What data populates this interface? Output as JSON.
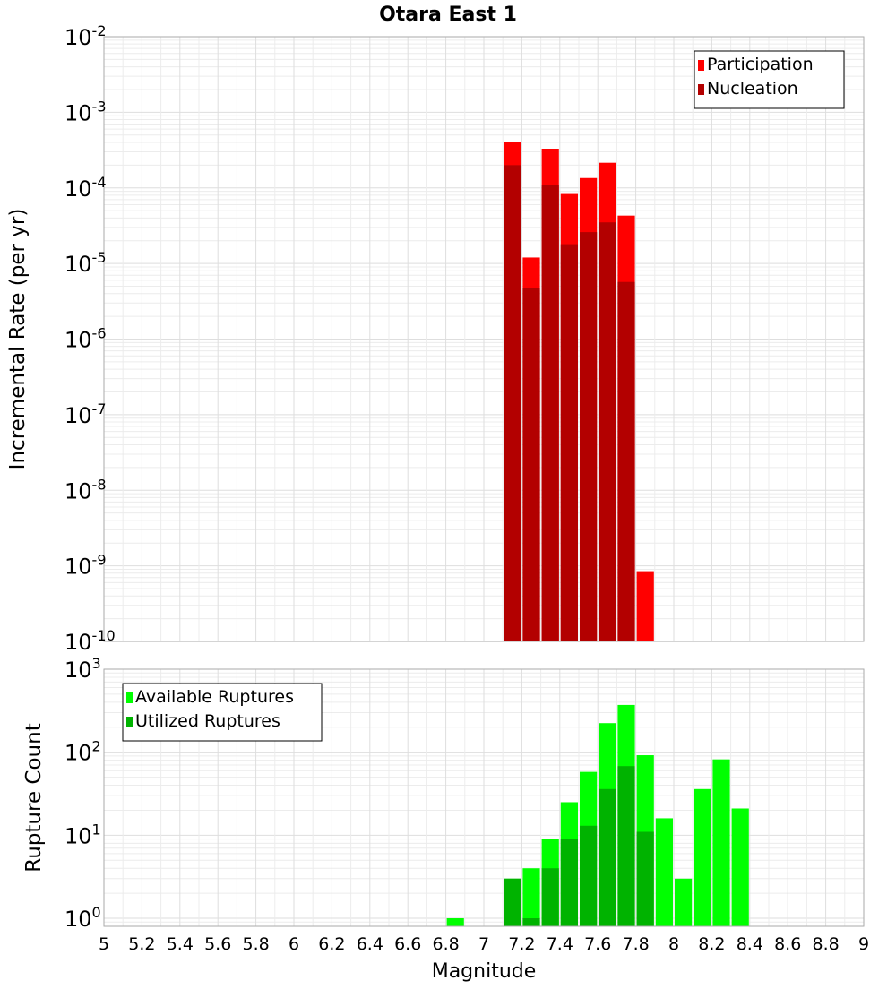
{
  "chart_data": {
    "title": "Otara East 1",
    "xlabel": "Magnitude",
    "xlim": [
      5,
      9
    ],
    "xticks": [
      "5",
      "5.2",
      "5.4",
      "5.6",
      "5.8",
      "6",
      "6.2",
      "6.4",
      "6.6",
      "6.8",
      "7",
      "7.2",
      "7.4",
      "7.6",
      "7.8",
      "8",
      "8.2",
      "8.4",
      "8.6",
      "8.8",
      "9"
    ],
    "bin_width": 0.1,
    "panels": [
      {
        "type": "bar",
        "y_scale": "log",
        "ylabel": "Incremental Rate (per yr)",
        "ylim": [
          1e-10,
          0.01
        ],
        "ytick_exponents": [
          -10,
          -9,
          -8,
          -7,
          -6,
          -5,
          -4,
          -3,
          -2
        ],
        "grid": true,
        "legend_position": "top-right",
        "series": [
          {
            "name": "Participation",
            "color": "#ff0000",
            "x": [
              7.15,
              7.25,
              7.35,
              7.45,
              7.55,
              7.65,
              7.75,
              7.85
            ],
            "values": [
              0.00041,
              1.2e-05,
              0.00033,
              8.3e-05,
              0.000135,
              0.000215,
              4.3e-05,
              8.5e-10
            ]
          },
          {
            "name": "Nucleation",
            "color": "#b30000",
            "x": [
              7.15,
              7.25,
              7.35,
              7.45,
              7.55,
              7.65,
              7.75
            ],
            "values": [
              0.0002,
              4.7e-06,
              0.00011,
              1.8e-05,
              2.6e-05,
              3.5e-05,
              5.7e-06
            ]
          }
        ]
      },
      {
        "type": "bar",
        "y_scale": "log",
        "ylabel": "Rupture Count",
        "ylim": [
          0.8,
          1000
        ],
        "ytick_exponents": [
          0,
          1,
          2,
          3
        ],
        "grid": true,
        "legend_position": "top-left",
        "series": [
          {
            "name": "Available Ruptures",
            "color": "#00ff00",
            "x": [
              6.85,
              7.15,
              7.25,
              7.35,
              7.45,
              7.55,
              7.65,
              7.75,
              7.85,
              7.95,
              8.05,
              8.15,
              8.25,
              8.35
            ],
            "values": [
              1,
              3,
              4,
              9,
              25,
              58,
              224,
              371,
              92,
              16,
              3,
              36,
              82,
              21
            ]
          },
          {
            "name": "Utilized Ruptures",
            "color": "#00b300",
            "x": [
              7.15,
              7.25,
              7.35,
              7.45,
              7.55,
              7.65,
              7.75,
              7.85
            ],
            "values": [
              3,
              1,
              4,
              9,
              13,
              36,
              68,
              11
            ]
          }
        ]
      }
    ]
  }
}
